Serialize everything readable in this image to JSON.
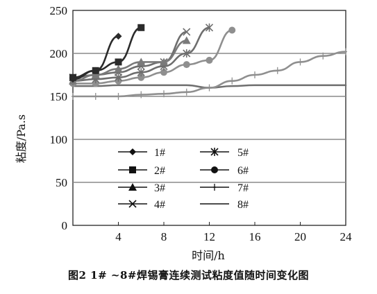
{
  "caption": "图2 1# ~8#焊锡膏连续测试粘度值随时间变化图",
  "chart_data": {
    "type": "line",
    "title": "",
    "xlabel": "时间/h",
    "ylabel": "粘度/Pa.s",
    "xlim": [
      0,
      24
    ],
    "ylim": [
      0,
      250
    ],
    "xticks": [
      4,
      8,
      12,
      16,
      20,
      24
    ],
    "xtick_labels": [
      "4",
      "8",
      "12",
      "16",
      "20",
      "24"
    ],
    "yticks": [
      0,
      50,
      100,
      150,
      200,
      250
    ],
    "ytick_labels": [
      "0",
      "50",
      "100",
      "150",
      "200",
      "250"
    ],
    "grid": "horizontal",
    "legend_position": "lower-left inside plot",
    "colors": {
      "dark": "#2b2b2b",
      "mid": "#6e6e6e",
      "light": "#8f8f8f",
      "grid": "#8a8a8a"
    },
    "series": [
      {
        "name": "1#",
        "marker": "diamond",
        "color": "#2b2b2b",
        "x": [
          0,
          2,
          4
        ],
        "y": [
          170,
          180,
          220
        ]
      },
      {
        "name": "2#",
        "marker": "square",
        "color": "#2b2b2b",
        "x": [
          0,
          2,
          4,
          6
        ],
        "y": [
          172,
          180,
          190,
          230
        ]
      },
      {
        "name": "3#",
        "marker": "triangle",
        "color": "#7a7a7a",
        "x": [
          0,
          2,
          4,
          6,
          8,
          10
        ],
        "y": [
          168,
          175,
          182,
          190,
          190,
          215
        ]
      },
      {
        "name": "4#",
        "marker": "x",
        "color": "#6e6e6e",
        "x": [
          0,
          2,
          4,
          6,
          8,
          10
        ],
        "y": [
          172,
          175,
          178,
          185,
          190,
          225
        ]
      },
      {
        "name": "5#",
        "marker": "star",
        "color": "#6e6e6e",
        "x": [
          0,
          2,
          4,
          6,
          8,
          10,
          12
        ],
        "y": [
          168,
          170,
          172,
          178,
          185,
          200,
          230
        ]
      },
      {
        "name": "6#",
        "marker": "circle",
        "color": "#8f8f8f",
        "x": [
          0,
          2,
          4,
          6,
          8,
          10,
          12,
          14
        ],
        "y": [
          165,
          165,
          168,
          172,
          178,
          187,
          192,
          227
        ]
      },
      {
        "name": "7#",
        "marker": "plus",
        "color": "#8f8f8f",
        "x": [
          0,
          2,
          4,
          6,
          8,
          10,
          12,
          14,
          16,
          18,
          20,
          22,
          24
        ],
        "y": [
          150,
          150,
          150,
          152,
          153,
          155,
          160,
          168,
          175,
          180,
          190,
          197,
          202
        ]
      },
      {
        "name": "8#",
        "marker": "none",
        "color": "#6e6e6e",
        "x": [
          0,
          2,
          4,
          6,
          8,
          10,
          12,
          14,
          16,
          18,
          20,
          22,
          24
        ],
        "y": [
          162,
          162,
          163,
          163,
          163,
          163,
          160,
          162,
          163,
          163,
          163,
          163,
          163
        ]
      }
    ]
  }
}
